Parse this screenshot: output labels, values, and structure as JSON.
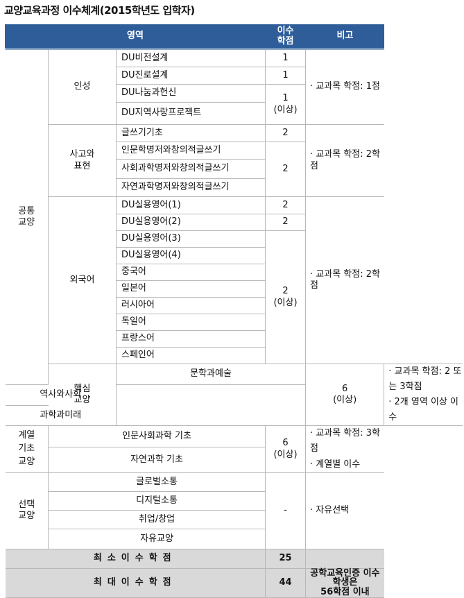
{
  "title": "교양교육과정 이수체계(2015학년도 입학자)",
  "header": {
    "area": "영역",
    "credits": "이수\n학점",
    "note": "비고"
  },
  "common": {
    "label": "공통\n교양",
    "insung": {
      "label": "인성",
      "courses": [
        "DU비전설계",
        "DU진로설계",
        "DU나눔과헌신",
        "DU지역사랑프로젝트"
      ],
      "credits": [
        "1",
        "1",
        "1\n(이상)"
      ],
      "note": "· 교과목 학점: 1점"
    },
    "sago": {
      "label": "사고와\n표현",
      "courses": [
        "글쓰기기초",
        "인문학명저와창의적글쓰기",
        "사회과학명저와창의적글쓰기",
        "자연과학명저와창의적글쓰기"
      ],
      "credits": [
        "2",
        "2"
      ],
      "note": "· 교과목 학점: 2학점"
    },
    "foreign": {
      "label": "외국어",
      "courses": [
        "DU실용영어(1)",
        "DU실용영어(2)",
        "DU실용영어(3)",
        "DU실용영어(4)",
        "중국어",
        "일본어",
        "러시아어",
        "독일어",
        "프랑스어",
        "스페인어"
      ],
      "credits": [
        "2",
        "2",
        "2\n(이상)"
      ],
      "note": "· 교과목 학점: 2학점"
    }
  },
  "core": {
    "label": "핵심\n교양",
    "courses": [
      "문학과예술",
      "역사와사회",
      "과학과미래"
    ],
    "credits": "6\n(이상)",
    "note": "· 교과목 학점: 2 또는 3학점\n· 2개 영역 이상 이수"
  },
  "basic": {
    "label": "계열\n기초\n교양",
    "courses": [
      "인문사회과학 기초",
      "자연과학 기초"
    ],
    "credits": "6\n(이상)",
    "note": "· 교과목 학점: 3학점\n· 계열별 이수"
  },
  "elective": {
    "label": "선택\n교양",
    "courses": [
      "글로벌소통",
      "디지털소통",
      "취업/창업",
      "자유교양"
    ],
    "credits": "-",
    "note": "· 자유선택"
  },
  "min": {
    "label": "최소이수학점",
    "credits": "25",
    "note": ""
  },
  "max": {
    "label": "최대이수학점",
    "credits": "44",
    "note": "공학교육인증 이수 학생은\n56학점 이내"
  }
}
